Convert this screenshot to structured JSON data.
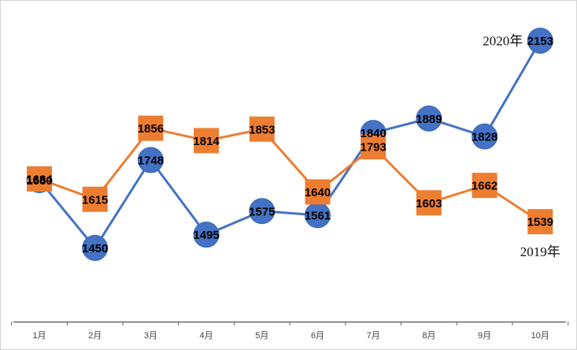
{
  "chart_data": {
    "type": "line",
    "categories": [
      "1月",
      "2月",
      "3月",
      "4月",
      "5月",
      "6月",
      "7月",
      "8月",
      "9月",
      "10月"
    ],
    "series": [
      {
        "name": "2020年",
        "color": "#4472C4",
        "marker": "circle",
        "values": [
          1680,
          1450,
          1748,
          1495,
          1575,
          1561,
          1840,
          1889,
          1828,
          2153
        ]
      },
      {
        "name": "2019年",
        "color": "#ED7D31",
        "marker": "square",
        "values": [
          1684,
          1615,
          1856,
          1814,
          1853,
          1640,
          1793,
          1603,
          1662,
          1539
        ]
      }
    ],
    "ylim": [
      1200,
      2200
    ],
    "grid": false,
    "legend": "inline labels at series ends",
    "title": "",
    "xlabel": "",
    "ylabel": ""
  }
}
